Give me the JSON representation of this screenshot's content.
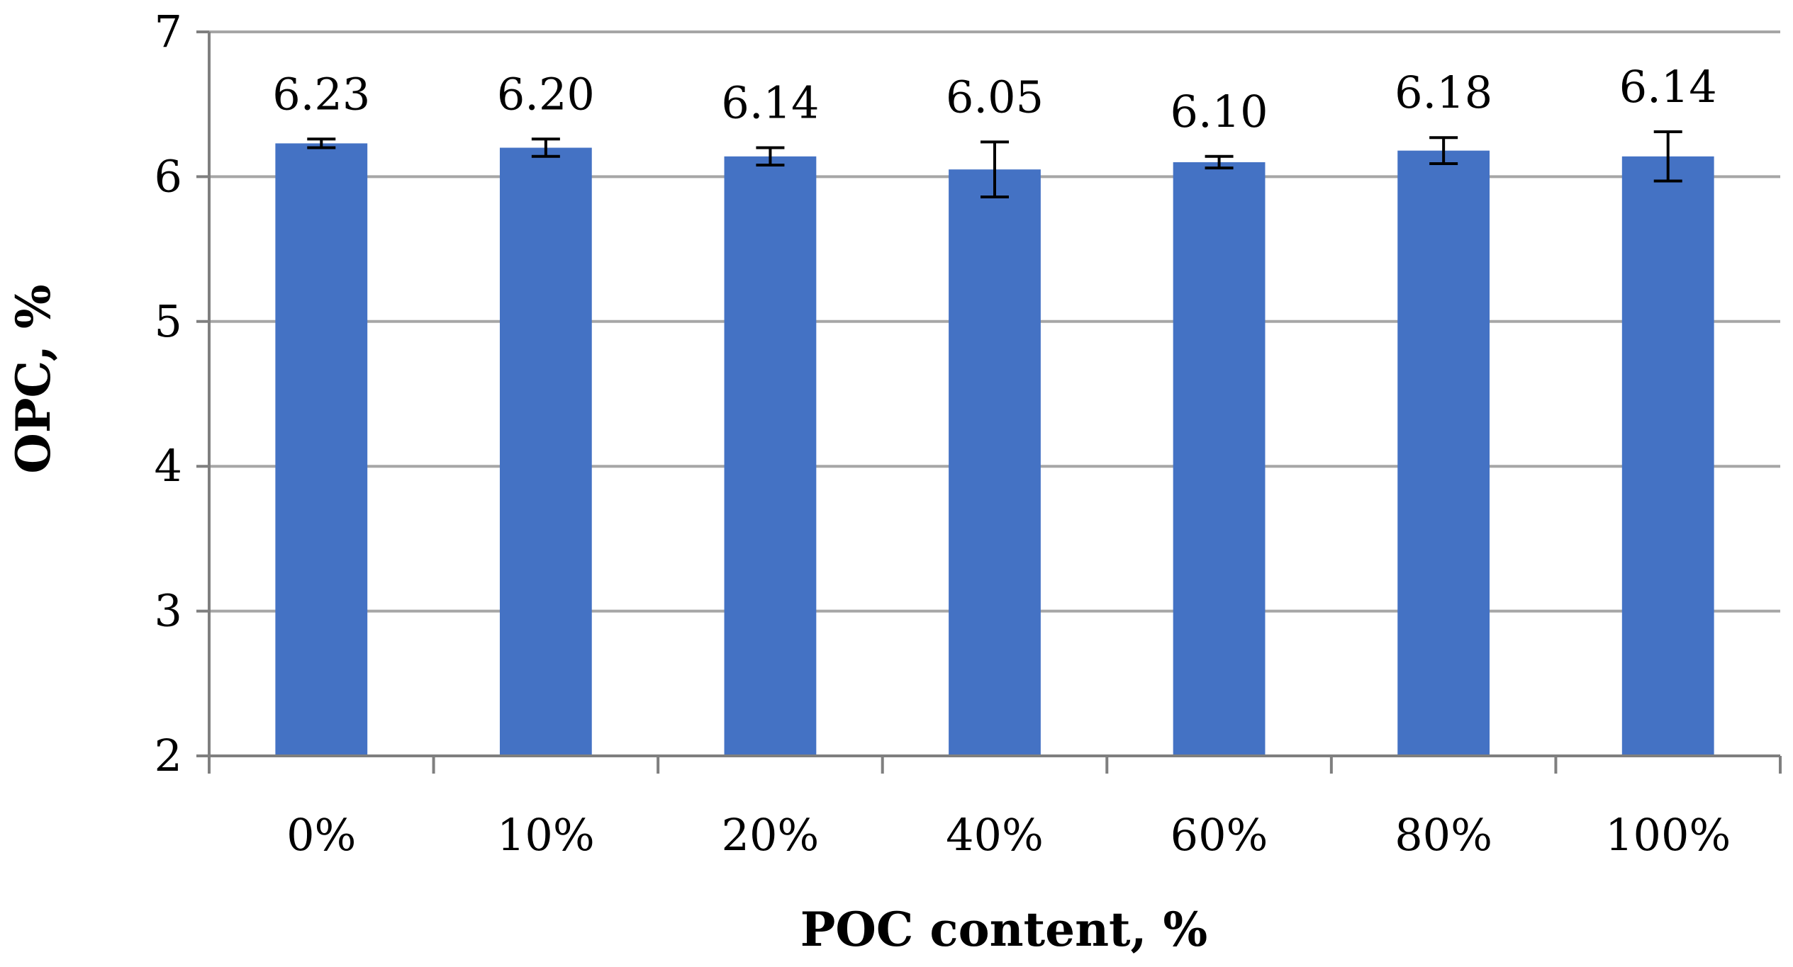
{
  "chart_data": {
    "type": "bar",
    "title": "",
    "xlabel": "POC content, %",
    "ylabel": "OPC, %",
    "categories": [
      "0%",
      "10%",
      "20%",
      "40%",
      "60%",
      "80%",
      "100%"
    ],
    "values": [
      6.23,
      6.2,
      6.14,
      6.05,
      6.1,
      6.18,
      6.14
    ],
    "data_labels": [
      "6.23",
      "6.20",
      "6.14",
      "6.05",
      "6.10",
      "6.18",
      "6.14"
    ],
    "error": [
      0.03,
      0.06,
      0.06,
      0.19,
      0.04,
      0.09,
      0.17
    ],
    "ylim": [
      2,
      7
    ],
    "yticks": [
      2,
      3,
      4,
      5,
      6,
      7
    ],
    "grid": true,
    "legend": "none",
    "colors": {
      "bar": "#4472C4",
      "grid": "#A6A6A6",
      "axis": "#7F7F7F",
      "error_bar": "#000000",
      "text": "#000000"
    }
  }
}
